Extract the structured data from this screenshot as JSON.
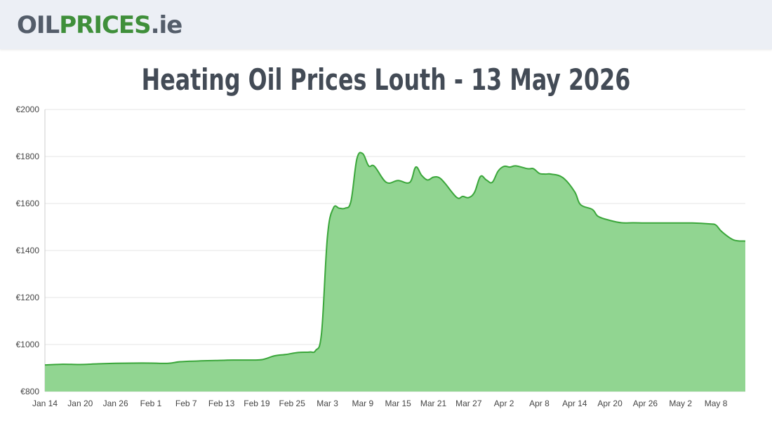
{
  "header": {
    "logo_part1": "OIL",
    "logo_part2": "PRICES",
    "logo_part3": ".ie"
  },
  "title": "Heating Oil Prices Louth - 13 May 2026",
  "colors": {
    "line": "#3aa63a",
    "fill": "#91d591",
    "grid": "#e4e4e4",
    "axis": "#cccccc",
    "logo_grey": "#545d6a",
    "logo_green": "#3f8f3a"
  },
  "chart_data": {
    "type": "area",
    "title": "Heating Oil Prices Louth - 13 May 2026",
    "xlabel": "",
    "ylabel": "",
    "ylim": [
      800,
      2000
    ],
    "grid": true,
    "y_ticks": [
      800,
      1000,
      1200,
      1400,
      1600,
      1800,
      2000
    ],
    "y_tick_labels": [
      "€800",
      "€1000",
      "€1200",
      "€1400",
      "€1600",
      "€1800",
      "€2000"
    ],
    "x_tick_labels": [
      "Jan 14",
      "Jan 20",
      "Jan 26",
      "Feb 1",
      "Feb 7",
      "Feb 13",
      "Feb 19",
      "Feb 25",
      "Mar 3",
      "Mar 9",
      "Mar 15",
      "Mar 21",
      "Mar 27",
      "Apr 2",
      "Apr 8",
      "Apr 14",
      "Apr 20",
      "Apr 26",
      "May 2",
      "May 8"
    ],
    "series": [
      {
        "x": [
          "Jan 14",
          "Jan 17",
          "Jan 20",
          "Jan 23",
          "Jan 26",
          "Jan 29",
          "Feb 1",
          "Feb 4",
          "Feb 6",
          "Feb 9",
          "Feb 12",
          "Feb 15",
          "Feb 18",
          "Feb 20",
          "Feb 22",
          "Feb 24",
          "Feb 26",
          "Feb 28",
          "Mar 1",
          "Mar 2",
          "Mar 3",
          "Mar 4",
          "Mar 5",
          "Mar 6",
          "Mar 7",
          "Mar 8",
          "Mar 9",
          "Mar 10",
          "Mar 11",
          "Mar 13",
          "Mar 15",
          "Mar 17",
          "Mar 18",
          "Mar 19",
          "Mar 20",
          "Mar 21",
          "Mar 22",
          "Mar 23",
          "Mar 25",
          "Mar 26",
          "Mar 27",
          "Mar 28",
          "Mar 29",
          "Mar 30",
          "Mar 31",
          "Apr 1",
          "Apr 2",
          "Apr 3",
          "Apr 4",
          "Apr 6",
          "Apr 7",
          "Apr 8",
          "Apr 9",
          "Apr 10",
          "Apr 12",
          "Apr 14",
          "Apr 15",
          "Apr 17",
          "Apr 18",
          "Apr 20",
          "Apr 22",
          "Apr 24",
          "Apr 26",
          "Apr 30",
          "May 4",
          "May 7",
          "May 8",
          "May 9",
          "May 11",
          "May 13"
        ],
        "y": [
          913,
          916,
          915,
          918,
          920,
          921,
          921,
          920,
          927,
          930,
          932,
          934,
          934,
          936,
          952,
          958,
          966,
          968,
          975,
          1050,
          1460,
          1580,
          1580,
          1580,
          1610,
          1790,
          1812,
          1760,
          1758,
          1690,
          1698,
          1690,
          1755,
          1720,
          1700,
          1712,
          1710,
          1685,
          1625,
          1630,
          1625,
          1648,
          1715,
          1700,
          1690,
          1738,
          1758,
          1755,
          1760,
          1748,
          1748,
          1728,
          1725,
          1725,
          1710,
          1650,
          1595,
          1575,
          1545,
          1528,
          1518,
          1518,
          1517,
          1517,
          1517,
          1513,
          1508,
          1480,
          1445,
          1440
        ]
      }
    ]
  }
}
